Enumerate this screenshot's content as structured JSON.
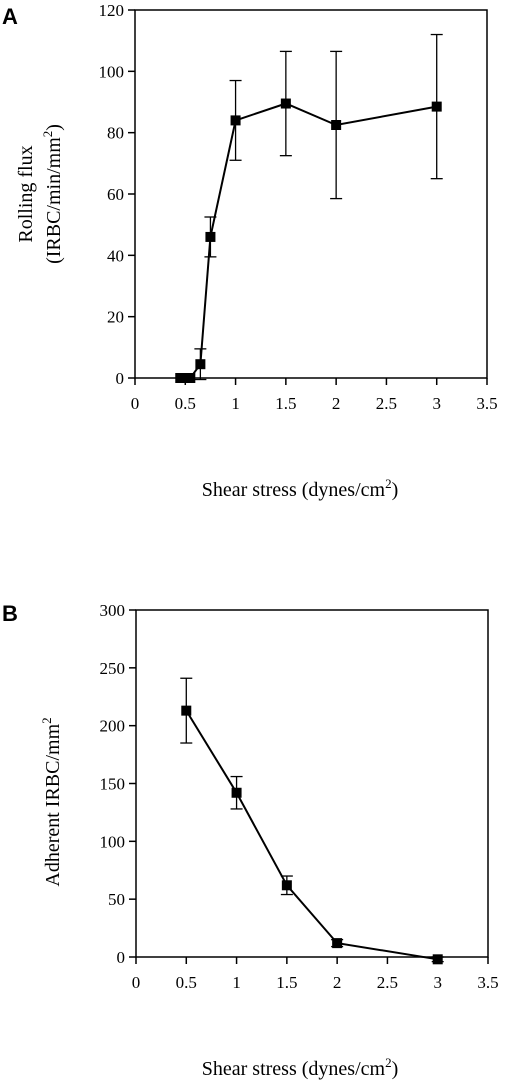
{
  "chart_data": [
    {
      "type": "line",
      "panel_label": "A",
      "ylabel_line1": "Rolling flux",
      "ylabel_line2": "(IRBC/min/mm",
      "ylabel_sup": "2",
      "ylabel_close": ")",
      "xlabel": "Shear stress (dynes/cm",
      "xlabel_sup": "2",
      "xlabel_close": ")",
      "xlim": [
        0,
        3.5
      ],
      "ylim": [
        0,
        120
      ],
      "x_ticks": [
        "0",
        "0.5",
        "1",
        "1.5",
        "2",
        "2.5",
        "3",
        "3.5"
      ],
      "y_ticks": [
        "0",
        "20",
        "40",
        "60",
        "80",
        "100",
        "120"
      ],
      "grid": false,
      "series": [
        {
          "points": [
            {
              "x": 0.45,
              "y": 0,
              "err": 0
            },
            {
              "x": 0.5,
              "y": 0,
              "err": 0
            },
            {
              "x": 0.55,
              "y": 0,
              "err": 0
            },
            {
              "x": 0.65,
              "y": 4.5,
              "err": 5
            },
            {
              "x": 0.75,
              "y": 46,
              "err": 6.5
            },
            {
              "x": 1.0,
              "y": 84,
              "err": 13
            },
            {
              "x": 1.5,
              "y": 89.5,
              "err": 17
            },
            {
              "x": 2.0,
              "y": 82.5,
              "err": 24
            },
            {
              "x": 3.0,
              "y": 88.5,
              "err": 23.5
            }
          ]
        }
      ]
    },
    {
      "type": "line",
      "panel_label": "B",
      "ylabel_line1": "Adherent IRBC/mm",
      "ylabel_sup": "2",
      "xlabel": "Shear stress (dynes/cm",
      "xlabel_sup": "2",
      "xlabel_close": ")",
      "xlim": [
        0,
        3.5
      ],
      "ylim": [
        0,
        300
      ],
      "x_ticks": [
        "0",
        "0.5",
        "1",
        "1.5",
        "2",
        "2.5",
        "3",
        "3.5"
      ],
      "y_ticks": [
        "0",
        "50",
        "100",
        "150",
        "200",
        "250",
        "300"
      ],
      "grid": false,
      "series": [
        {
          "points": [
            {
              "x": 0.5,
              "y": 213,
              "err": 28
            },
            {
              "x": 1.0,
              "y": 142,
              "err": 14
            },
            {
              "x": 1.5,
              "y": 62,
              "err": 8
            },
            {
              "x": 2.0,
              "y": 12,
              "err": 3
            },
            {
              "x": 3.0,
              "y": -2,
              "err": 2
            }
          ]
        }
      ]
    }
  ]
}
